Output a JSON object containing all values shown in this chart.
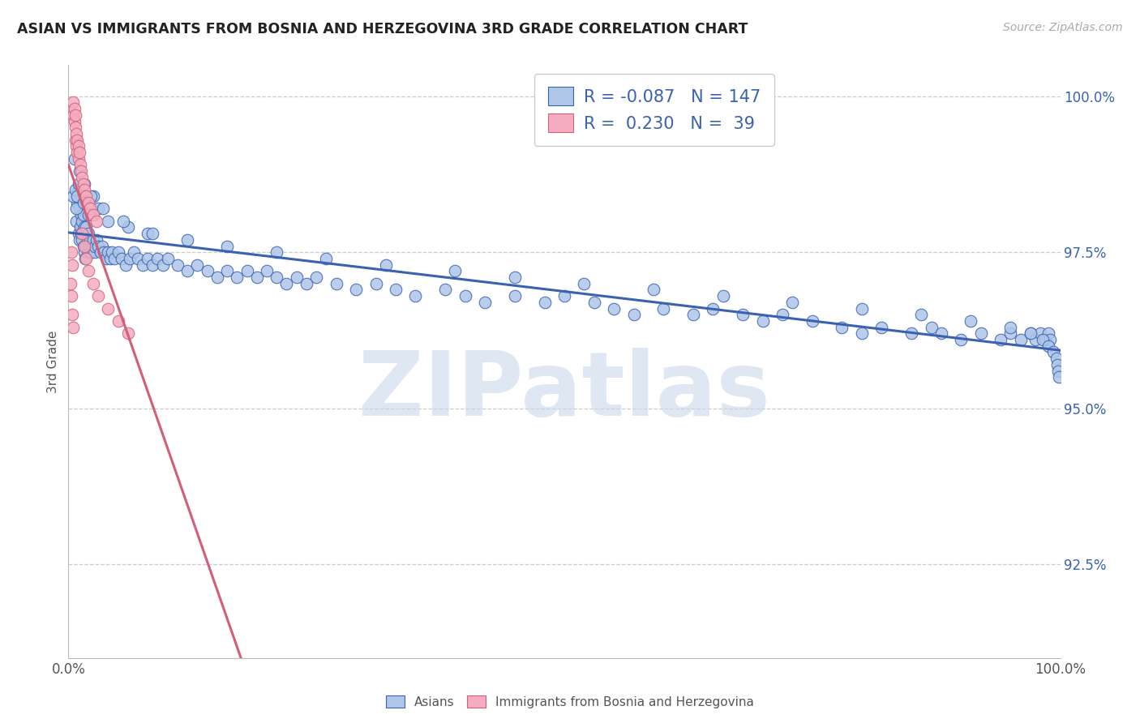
{
  "title": "ASIAN VS IMMIGRANTS FROM BOSNIA AND HERZEGOVINA 3RD GRADE CORRELATION CHART",
  "source": "Source: ZipAtlas.com",
  "ylabel": "3rd Grade",
  "legend_blue_r": "-0.087",
  "legend_blue_n": "147",
  "legend_pink_r": "0.230",
  "legend_pink_n": "39",
  "blue_color": "#aec6e8",
  "pink_color": "#f4adc0",
  "blue_line_color": "#3a62b0",
  "pink_line_color": "#d45f7a",
  "grid_color": "#cccccc",
  "title_color": "#222222",
  "axis_color": "#555555",
  "tick_color": "#3a62b0",
  "background_color": "#ffffff",
  "watermark_color": "#c8d8ea",
  "blue_scatter_x": [
    0.008,
    0.009,
    0.01,
    0.01,
    0.011,
    0.011,
    0.012,
    0.012,
    0.013,
    0.013,
    0.014,
    0.014,
    0.015,
    0.015,
    0.016,
    0.016,
    0.017,
    0.017,
    0.018,
    0.018,
    0.019,
    0.02,
    0.02,
    0.021,
    0.022,
    0.023,
    0.024,
    0.025,
    0.026,
    0.027,
    0.028,
    0.03,
    0.032,
    0.034,
    0.036,
    0.038,
    0.04,
    0.042,
    0.044,
    0.046,
    0.05,
    0.054,
    0.058,
    0.062,
    0.066,
    0.07,
    0.075,
    0.08,
    0.085,
    0.09,
    0.095,
    0.1,
    0.11,
    0.12,
    0.13,
    0.14,
    0.15,
    0.16,
    0.17,
    0.18,
    0.19,
    0.2,
    0.21,
    0.22,
    0.23,
    0.24,
    0.25,
    0.27,
    0.29,
    0.31,
    0.33,
    0.35,
    0.38,
    0.4,
    0.42,
    0.45,
    0.48,
    0.5,
    0.53,
    0.55,
    0.57,
    0.6,
    0.63,
    0.65,
    0.68,
    0.7,
    0.72,
    0.75,
    0.78,
    0.8,
    0.82,
    0.85,
    0.87,
    0.88,
    0.9,
    0.92,
    0.94,
    0.95,
    0.96,
    0.97,
    0.975,
    0.98,
    0.985,
    0.988,
    0.99,
    0.005,
    0.007,
    0.008,
    0.009,
    0.01,
    0.015,
    0.02,
    0.025,
    0.03,
    0.04,
    0.06,
    0.08,
    0.12,
    0.16,
    0.21,
    0.26,
    0.32,
    0.39,
    0.45,
    0.52,
    0.59,
    0.66,
    0.73,
    0.8,
    0.86,
    0.91,
    0.95,
    0.97,
    0.982,
    0.988,
    0.993,
    0.996,
    0.997,
    0.998,
    0.999,
    0.006,
    0.011,
    0.016,
    0.023,
    0.035,
    0.055,
    0.085
  ],
  "blue_scatter_y": [
    0.98,
    0.983,
    0.978,
    0.985,
    0.977,
    0.982,
    0.979,
    0.984,
    0.978,
    0.981,
    0.98,
    0.977,
    0.981,
    0.976,
    0.979,
    0.975,
    0.978,
    0.974,
    0.979,
    0.976,
    0.977,
    0.978,
    0.975,
    0.976,
    0.977,
    0.975,
    0.976,
    0.977,
    0.975,
    0.976,
    0.977,
    0.976,
    0.975,
    0.976,
    0.975,
    0.974,
    0.975,
    0.974,
    0.975,
    0.974,
    0.975,
    0.974,
    0.973,
    0.974,
    0.975,
    0.974,
    0.973,
    0.974,
    0.973,
    0.974,
    0.973,
    0.974,
    0.973,
    0.972,
    0.973,
    0.972,
    0.971,
    0.972,
    0.971,
    0.972,
    0.971,
    0.972,
    0.971,
    0.97,
    0.971,
    0.97,
    0.971,
    0.97,
    0.969,
    0.97,
    0.969,
    0.968,
    0.969,
    0.968,
    0.967,
    0.968,
    0.967,
    0.968,
    0.967,
    0.966,
    0.965,
    0.966,
    0.965,
    0.966,
    0.965,
    0.964,
    0.965,
    0.964,
    0.963,
    0.962,
    0.963,
    0.962,
    0.963,
    0.962,
    0.961,
    0.962,
    0.961,
    0.962,
    0.961,
    0.962,
    0.961,
    0.962,
    0.961,
    0.962,
    0.961,
    0.984,
    0.985,
    0.982,
    0.984,
    0.986,
    0.983,
    0.981,
    0.984,
    0.982,
    0.98,
    0.979,
    0.978,
    0.977,
    0.976,
    0.975,
    0.974,
    0.973,
    0.972,
    0.971,
    0.97,
    0.969,
    0.968,
    0.967,
    0.966,
    0.965,
    0.964,
    0.963,
    0.962,
    0.961,
    0.96,
    0.959,
    0.958,
    0.957,
    0.956,
    0.955,
    0.99,
    0.988,
    0.986,
    0.984,
    0.982,
    0.98,
    0.978
  ],
  "pink_scatter_x": [
    0.005,
    0.005,
    0.006,
    0.006,
    0.007,
    0.007,
    0.007,
    0.008,
    0.008,
    0.009,
    0.009,
    0.01,
    0.01,
    0.011,
    0.012,
    0.013,
    0.014,
    0.015,
    0.016,
    0.018,
    0.02,
    0.022,
    0.025,
    0.028,
    0.014,
    0.016,
    0.018,
    0.02,
    0.025,
    0.03,
    0.002,
    0.003,
    0.003,
    0.004,
    0.004,
    0.005,
    0.04,
    0.05,
    0.06
  ],
  "pink_scatter_y": [
    0.999,
    0.997,
    0.998,
    0.996,
    0.997,
    0.995,
    0.993,
    0.994,
    0.992,
    0.993,
    0.991,
    0.992,
    0.99,
    0.991,
    0.989,
    0.988,
    0.987,
    0.986,
    0.985,
    0.984,
    0.983,
    0.982,
    0.981,
    0.98,
    0.978,
    0.976,
    0.974,
    0.972,
    0.97,
    0.968,
    0.97,
    0.968,
    0.975,
    0.973,
    0.965,
    0.963,
    0.966,
    0.964,
    0.962
  ],
  "xlim": [
    0.0,
    1.0
  ],
  "ylim": [
    0.91,
    1.005
  ],
  "yticks": [
    0.925,
    0.95,
    0.975,
    1.0
  ],
  "ytick_labels": [
    "92.5%",
    "95.0%",
    "97.5%",
    "100.0%"
  ],
  "xticks": [
    0.0,
    1.0
  ],
  "xtick_labels": [
    "0.0%",
    "100.0%"
  ],
  "grid_yticks": [
    0.925,
    0.95,
    0.975,
    1.0
  ]
}
